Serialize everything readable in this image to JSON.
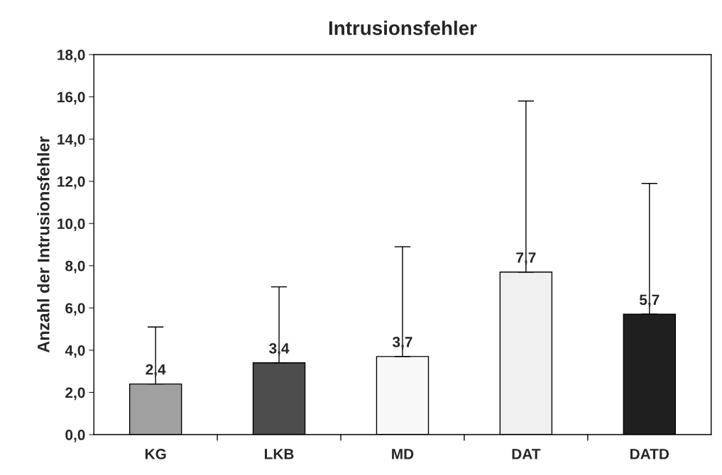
{
  "chart_data": {
    "type": "bar",
    "title": "Intrusionsfehler",
    "ylabel": "Anzahl der Intrusionsfehler",
    "categories": [
      "KG",
      "LKB",
      "MD",
      "DAT",
      "DATD"
    ],
    "values": [
      2.4,
      3.4,
      3.7,
      7.7,
      5.7
    ],
    "colors": [
      "#a0a0a0",
      "#4d4d4d",
      "#f8f8f8",
      "#f0f0f0",
      "#1f1f1f"
    ],
    "errors": [
      [
        2.4,
        5.1
      ],
      [
        3.4,
        7.0
      ],
      [
        3.7,
        8.9
      ],
      [
        7.7,
        15.8
      ],
      [
        5.7,
        11.9
      ]
    ],
    "value_labels": [
      "2,4",
      "3,4",
      "3,7",
      "7,7",
      "5,7"
    ],
    "ylim": [
      0,
      18
    ],
    "yticks": [
      {
        "value": 0,
        "label": "0,0"
      },
      {
        "value": 2,
        "label": "2,0"
      },
      {
        "value": 4,
        "label": "4,0"
      },
      {
        "value": 6,
        "label": "6,0"
      },
      {
        "value": 8,
        "label": "8,0"
      },
      {
        "value": 10,
        "label": "10,0"
      },
      {
        "value": 12,
        "label": "12,0"
      },
      {
        "value": 14,
        "label": "14,0"
      },
      {
        "value": 16,
        "label": "16,0"
      },
      {
        "value": 18,
        "label": "18,0"
      }
    ],
    "grid": false,
    "legend": false
  }
}
